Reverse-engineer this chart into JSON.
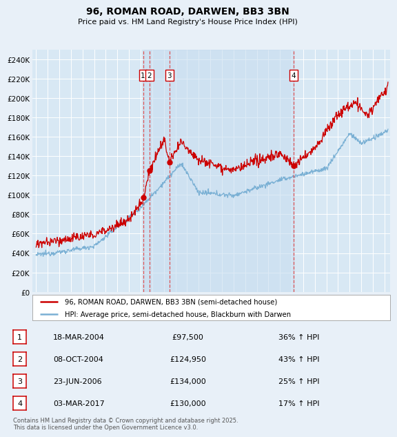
{
  "title": "96, ROMAN ROAD, DARWEN, BB3 3BN",
  "subtitle": "Price paid vs. HM Land Registry's House Price Index (HPI)",
  "background_color": "#e8f0f8",
  "plot_bg_color": "#d8e8f4",
  "shade_color": "#c8ddf0",
  "legend_label_red": "96, ROMAN ROAD, DARWEN, BB3 3BN (semi-detached house)",
  "legend_label_blue": "HPI: Average price, semi-detached house, Blackburn with Darwen",
  "transactions": [
    {
      "label": "1",
      "date": "18-MAR-2004",
      "price": 97500,
      "pct": "36% ↑ HPI",
      "year": 2004.21,
      "value": 97500
    },
    {
      "label": "2",
      "date": "08-OCT-2004",
      "price": 124950,
      "pct": "43% ↑ HPI",
      "year": 2004.77,
      "value": 124950
    },
    {
      "label": "3",
      "date": "23-JUN-2006",
      "price": 134000,
      "pct": "25% ↑ HPI",
      "year": 2006.48,
      "value": 134000
    },
    {
      "label": "4",
      "date": "03-MAR-2017",
      "price": 130000,
      "pct": "17% ↑ HPI",
      "year": 2017.17,
      "value": 130000
    }
  ],
  "footer": "Contains HM Land Registry data © Crown copyright and database right 2025.\nThis data is licensed under the Open Government Licence v3.0.",
  "ylim": [
    0,
    250000
  ],
  "yticks": [
    0,
    20000,
    40000,
    60000,
    80000,
    100000,
    120000,
    140000,
    160000,
    180000,
    200000,
    220000,
    240000
  ],
  "xlim_start": 1994.7,
  "xlim_end": 2025.5,
  "red_color": "#cc0000",
  "blue_color": "#7ab0d4",
  "vline_color": "#dd4444"
}
